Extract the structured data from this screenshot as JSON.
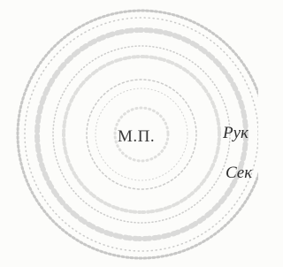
{
  "stamp_label": "М.П.",
  "lines": [
    "Рук",
    "Сек"
  ]
}
